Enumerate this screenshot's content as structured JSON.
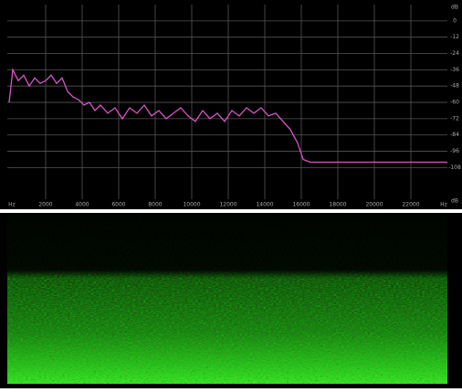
{
  "chart_data": {
    "type": "line",
    "x_axis_label": "Hz",
    "y_axis_label": "dB",
    "color": "#d855c8",
    "x": [
      0,
      200,
      500,
      800,
      1100,
      1400,
      1700,
      2000,
      2300,
      2600,
      2900,
      3200,
      3500,
      3800,
      4100,
      4400,
      4700,
      5000,
      5400,
      5800,
      6200,
      6600,
      7000,
      7400,
      7800,
      8200,
      8600,
      9000,
      9400,
      9800,
      10200,
      10600,
      11000,
      11400,
      11800,
      12200,
      12600,
      13000,
      13400,
      13800,
      14200,
      14600,
      15000,
      15400,
      15800,
      16100,
      16500,
      18000,
      20000,
      22000,
      24000
    ],
    "values": [
      -60,
      -36,
      -44,
      -40,
      -48,
      -42,
      -46,
      -44,
      -40,
      -46,
      -42,
      -52,
      -56,
      -58,
      -62,
      -60,
      -66,
      -62,
      -68,
      -64,
      -72,
      -64,
      -68,
      -62,
      -70,
      -66,
      -72,
      -68,
      -64,
      -70,
      -74,
      -66,
      -72,
      -68,
      -74,
      -66,
      -70,
      -64,
      -68,
      -64,
      -70,
      -68,
      -74,
      -80,
      -90,
      -102,
      -104,
      -104,
      -104,
      -104,
      -104
    ],
    "xlim": [
      0,
      24000
    ],
    "xticks": [
      2000,
      4000,
      6000,
      8000,
      10000,
      12000,
      14000,
      16000,
      18000,
      20000,
      22000
    ],
    "ylim": [
      -138,
      12
    ],
    "yticks": [
      0,
      -12,
      -24,
      -36,
      -48,
      -60,
      -72,
      -84,
      -96,
      -108
    ],
    "grid": true
  }
}
